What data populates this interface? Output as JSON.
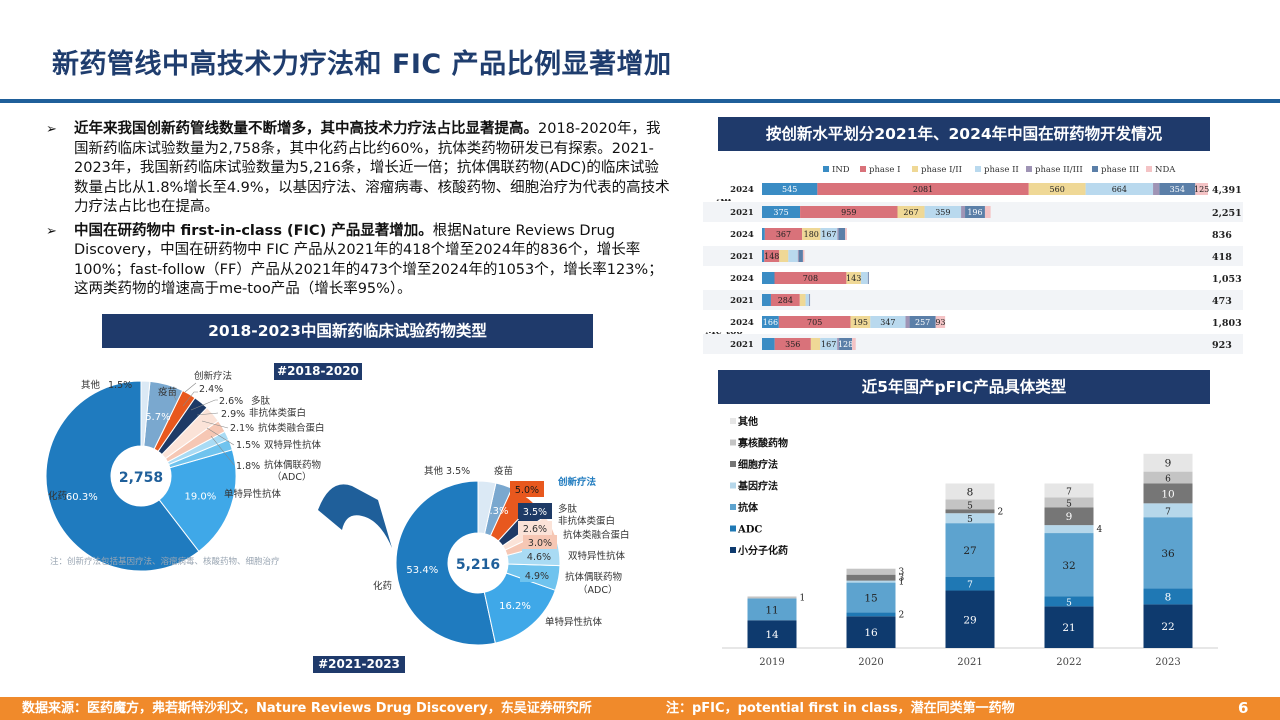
{
  "title": "新药管线中高技术力疗法和 FIC 产品比例显著增加",
  "bullets": [
    {
      "bold": "近年来我国创新药管线数量不断增多，其中高技术力疗法占比显著提高。",
      "text": "2018-2020年，我国新药临床试验数量为2,758条，其中化药占比约60%，抗体类药物研发已有探索。2021-2023年，我国新药临床试验数量为5,216条，增长近一倍；抗体偶联药物(ADC)的临床试验数量占比从1.8%增长至4.9%，以基因疗法、溶瘤病毒、核酸药物、细胞治疗为代表的高技术力疗法占比也在提高。"
    },
    {
      "bold": "中国在研药物中 first-in-class (FIC) 产品显著增加。",
      "text": "根据Nature Reviews Drug Discovery，中国在研药物中 FIC 产品从2021年的418个增至2024年的836个，增长率100%；fast-follow（FF）产品从2021年的473个增至2024年的1053个，增长率123%；这两类药物的增速高于me-too产品（增长率95%）。"
    }
  ],
  "bands": {
    "left": "2018-2023中国新药临床试验药物类型",
    "top_right": "按创新水平划分2021年、2024年中国在研药物开发情况",
    "bottom_right": "近5年国产pFIC产品具体类型"
  },
  "tags": {
    "d1": "#2018-2020",
    "d2": "#2021-2023"
  },
  "donut_note": "注：创新疗法包括基因疗法、溶瘤病毒、核酸药物、细胞治疗",
  "footer": {
    "source": "数据来源：医药魔方，弗若斯特沙利文，Nature Reviews Drug Discovery，东吴证券研究所",
    "note": "注：pFIC，potential first in class，潜在同类第一药物",
    "page": "6"
  },
  "colors": {
    "navy": "#1f3a6b",
    "orange": "#f08a2b",
    "title": "#1f3d6e"
  },
  "chart_data": [
    {
      "type": "pie",
      "title": "#2018-2020",
      "center_label": "2,758",
      "slices": [
        {
          "label": "化药",
          "value": 60.3,
          "text": "60.3%",
          "color": "#1f7bbf"
        },
        {
          "label": "单特异性抗体",
          "value": 19.0,
          "text": "19.0%",
          "color": "#3fa8e8"
        },
        {
          "label": "抗体偶联药物（ADC）",
          "value": 1.8,
          "text": "1.8%",
          "color": "#6fc3ee"
        },
        {
          "label": "双特异性抗体",
          "value": 1.5,
          "text": "1.5%",
          "color": "#a9dbf4"
        },
        {
          "label": "抗体类融合蛋白",
          "value": 2.1,
          "text": "2.1%",
          "color": "#f6c7b4"
        },
        {
          "label": "非抗体类蛋白",
          "value": 2.9,
          "text": "2.9%",
          "color": "#fbe3d8"
        },
        {
          "label": "多肽",
          "value": 2.6,
          "text": "2.6%",
          "color": "#1e3a66"
        },
        {
          "label": "创新疗法",
          "value": 2.4,
          "text": "2.4%",
          "color": "#e8581e"
        },
        {
          "label": "疫苗",
          "value": 5.7,
          "text": "5.7%",
          "color": "#7aa8cf"
        },
        {
          "label": "其他",
          "value": 1.5,
          "text": "1.5%",
          "color": "#dbe9f5"
        }
      ]
    },
    {
      "type": "pie",
      "title": "#2021-2023",
      "center_label": "5,216",
      "slices": [
        {
          "label": "化药",
          "value": 53.4,
          "text": "53.4%",
          "color": "#1f7bbf"
        },
        {
          "label": "单特异性抗体",
          "value": 16.2,
          "text": "16.2%",
          "color": "#3fa8e8"
        },
        {
          "label": "抗体偶联药物（ADC）",
          "value": 4.9,
          "text": "4.9%",
          "color": "#6fc3ee"
        },
        {
          "label": "双特异性抗体",
          "value": 4.6,
          "text": "4.6%",
          "color": "#a9dbf4"
        },
        {
          "label": "抗体类融合蛋白",
          "value": 3.0,
          "text": "3.0%",
          "color": "#f6c7b4"
        },
        {
          "label": "非抗体类蛋白",
          "value": 2.6,
          "text": "2.6%",
          "color": "#fbe3d8"
        },
        {
          "label": "多肽",
          "value": 3.5,
          "text": "3.5%",
          "color": "#1e3a66"
        },
        {
          "label": "创新疗法",
          "value": 5.0,
          "text": "5.0%",
          "color": "#e8581e"
        },
        {
          "label": "疫苗",
          "value": 3.3,
          "text": "3.3%",
          "color": "#7aa8cf"
        },
        {
          "label": "其他",
          "value": 3.5,
          "text": "3.5%",
          "color": "#dbe9f5"
        }
      ]
    },
    {
      "type": "bar",
      "orientation": "horizontal-stacked",
      "title": "按创新水平划分2021年、2024年中国在研药物开发情况",
      "legend": [
        "IND",
        "phase I",
        "phase I/II",
        "phase II",
        "phase II/III",
        "phase III",
        "NDA"
      ],
      "series_colors": [
        "#3a8cc4",
        "#d9727a",
        "#efd896",
        "#b9d9ee",
        "#9f94b5",
        "#5b7fa8",
        "#f4c3c5"
      ],
      "groups": [
        "All",
        "FIC",
        "FF",
        "Me-too"
      ],
      "rows": [
        {
          "group": "All",
          "year": "2024",
          "values": [
            545,
            2081,
            560,
            664,
            62,
            354,
            125
          ],
          "total": "4,391"
        },
        {
          "group": "All",
          "year": "2021",
          "values": [
            375,
            959,
            267,
            359,
            39,
            196,
            56
          ],
          "total": "2,251"
        },
        {
          "group": "FIC",
          "year": "2024",
          "values": [
            28,
            367,
            180,
            167,
            12,
            65,
            17
          ],
          "total": "836"
        },
        {
          "group": "FIC",
          "year": "2021",
          "values": [
            22,
            148,
            89,
            94,
            10,
            40,
            15
          ],
          "total": "418"
        },
        {
          "group": "FF",
          "year": "2024",
          "values": [
            123,
            708,
            143,
            68,
            5,
            6,
            0
          ],
          "total": "1,053"
        },
        {
          "group": "FF",
          "year": "2021",
          "values": [
            88,
            284,
            57,
            34,
            6,
            4,
            0
          ],
          "total": "473"
        },
        {
          "group": "Me-too",
          "year": "2024",
          "values": [
            166,
            705,
            195,
            347,
            40,
            257,
            93
          ],
          "total": "1,803"
        },
        {
          "group": "Me-too",
          "year": "2021",
          "values": [
            125,
            356,
            92,
            167,
            19,
            128,
            36
          ],
          "total": "923"
        }
      ]
    },
    {
      "type": "bar",
      "orientation": "vertical-stacked",
      "title": "近5年国产pFIC产品具体类型",
      "categories": [
        "2019",
        "2020",
        "2021",
        "2022",
        "2023"
      ],
      "series": [
        {
          "name": "小分子化药",
          "color": "#0e3a6e",
          "values": [
            14,
            16,
            29,
            21,
            22
          ]
        },
        {
          "name": "ADC",
          "color": "#1f78b4",
          "values": [
            0,
            2,
            7,
            5,
            8
          ]
        },
        {
          "name": "抗体",
          "color": "#5da3cf",
          "values": [
            11,
            15,
            27,
            32,
            36
          ]
        },
        {
          "name": "基因疗法",
          "color": "#b6d7ea",
          "values": [
            0,
            1,
            5,
            4,
            7
          ]
        },
        {
          "name": "细胞疗法",
          "color": "#767676",
          "values": [
            0,
            3,
            2,
            9,
            10
          ]
        },
        {
          "name": "寡核酸药物",
          "color": "#c4c4c4",
          "values": [
            1,
            3,
            5,
            5,
            6
          ]
        },
        {
          "name": "其他",
          "color": "#e6e6e6",
          "values": [
            0,
            0,
            8,
            7,
            9
          ]
        }
      ],
      "ylim": [
        0,
        110
      ]
    }
  ]
}
